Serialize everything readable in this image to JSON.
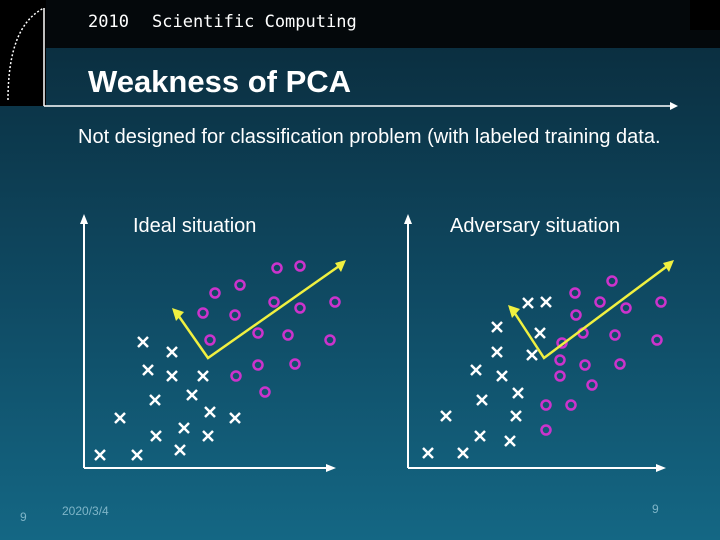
{
  "header": {
    "year": "2010",
    "course": "Scientific Computing"
  },
  "slide": {
    "title": "Weakness of PCA",
    "body": "Not designed for classification problem (with labeled training data.",
    "ideal_label": "Ideal situation",
    "adversary_label": "Adversary situation"
  },
  "footer": {
    "slide_number_left": "9",
    "date": "2020/3/4",
    "slide_number_right": "9"
  },
  "colors": {
    "cross": "#ffffff",
    "circle": "#cc33cc",
    "arrow": "#f0f040",
    "axis": "#ffffff"
  }
}
